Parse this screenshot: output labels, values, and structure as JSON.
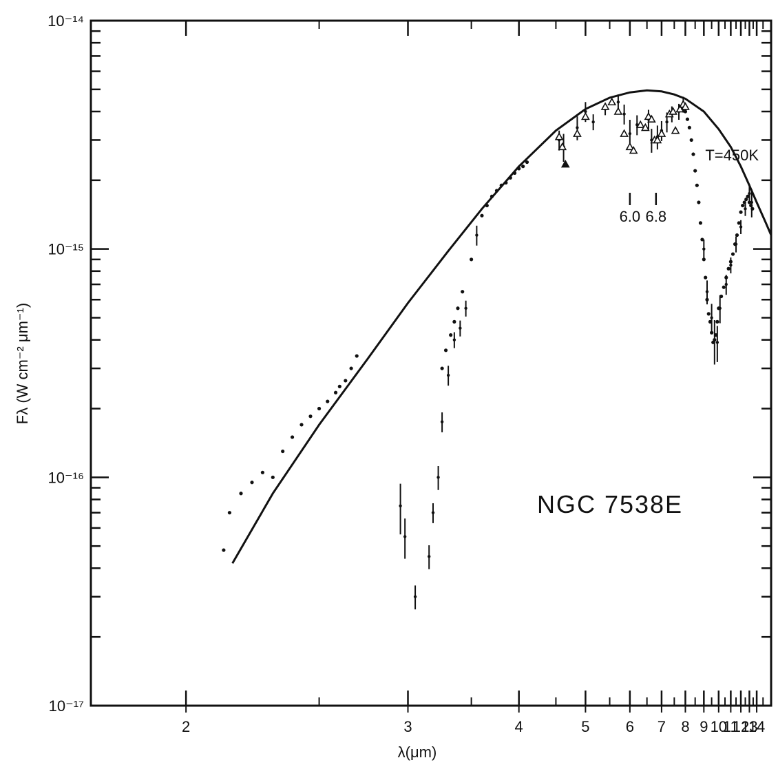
{
  "chart_data": {
    "type": "scatter",
    "title": "",
    "xlabel": "λ(μm)",
    "ylabel": "Fλ (W cm⁻² μm⁻¹)",
    "x_scale": "reciprocal",
    "y_scale": "log",
    "xlim": [
      1.75,
      16.5
    ],
    "ylim": [
      1e-17,
      1e-14
    ],
    "x_tick_labels": [
      "2",
      "3",
      "4",
      "5",
      "6",
      "7",
      "8",
      "9",
      "10",
      "11",
      "12",
      "13",
      "14"
    ],
    "x_tick_values": [
      2,
      3,
      4,
      5,
      6,
      7,
      8,
      9,
      10,
      11,
      12,
      13,
      14
    ],
    "y_tick_labels": [
      "10⁻¹⁴",
      "10⁻¹⁵",
      "10⁻¹⁶",
      "10⁻¹⁷"
    ],
    "y_tick_values": [
      1e-14,
      1e-15,
      1e-16,
      1e-17
    ],
    "object_label": "NGC 7538E",
    "curve_label": "T=450K",
    "feature_labels": [
      {
        "label": "6.0",
        "x": 6.0
      },
      {
        "label": "6.8",
        "x": 6.8
      }
    ],
    "grid": false,
    "legend": "none",
    "series": [
      {
        "kind": "curve",
        "x": [
          2.15,
          2.3,
          2.5,
          2.75,
          3.0,
          3.3,
          3.6,
          4.0,
          4.5,
          5.0,
          5.5,
          6.0,
          6.5,
          7.0,
          7.5,
          8.0,
          9.0,
          10.0,
          11.0,
          12.0,
          13.0,
          14.0,
          15.5,
          16.5
        ],
        "y": [
          4.2e-17,
          8.5e-17,
          1.7e-16,
          3.3e-16,
          5.8e-16,
          9.8e-16,
          1.5e-15,
          2.3e-15,
          3.3e-15,
          4.1e-15,
          4.6e-15,
          4.85e-15,
          4.95e-15,
          4.9e-15,
          4.75e-15,
          4.55e-15,
          4e-15,
          3.35e-15,
          2.8e-15,
          2.3e-15,
          1.9e-15,
          1.6e-15,
          1.3e-15,
          1.15e-15
        ]
      },
      {
        "kind": "dots",
        "x": [
          2.12,
          2.14,
          2.18,
          2.22,
          2.26,
          2.3,
          2.34,
          2.38,
          2.42,
          2.46,
          2.5,
          2.54,
          2.58,
          2.6,
          2.63,
          2.66,
          2.69,
          3.25,
          3.28,
          3.32,
          3.35,
          3.38,
          3.42,
          3.5,
          3.6,
          3.65,
          3.7,
          3.75,
          3.8,
          3.85,
          3.9,
          3.95,
          4.0,
          4.05,
          4.1,
          7.9,
          8.0,
          8.1,
          8.2,
          8.3,
          8.4,
          8.5,
          8.6,
          8.7,
          8.8,
          8.9,
          9.0,
          9.1,
          9.2,
          9.3,
          9.4,
          9.5,
          9.6,
          9.7,
          9.8,
          9.9,
          10.0,
          10.2,
          10.4,
          10.6,
          10.8,
          11.0,
          11.2,
          11.4,
          11.6,
          11.8,
          12.0,
          12.2,
          12.4,
          12.6,
          12.8,
          13.0,
          13.2,
          13.4
        ],
        "y": [
          4.8e-17,
          7e-17,
          8.5e-17,
          9.5e-17,
          1.05e-16,
          1e-16,
          1.3e-16,
          1.5e-16,
          1.7e-16,
          1.85e-16,
          2e-16,
          2.15e-16,
          2.35e-16,
          2.5e-16,
          2.65e-16,
          3e-16,
          3.4e-16,
          3e-16,
          3.6e-16,
          4.2e-16,
          4.8e-16,
          5.5e-16,
          6.5e-16,
          9e-16,
          1.4e-15,
          1.55e-15,
          1.7e-15,
          1.8e-15,
          1.9e-15,
          1.95e-15,
          2.05e-15,
          2.15e-15,
          2.25e-15,
          2.3e-15,
          2.4e-15,
          4.2e-15,
          4e-15,
          3.7e-15,
          3.4e-15,
          3e-15,
          2.6e-15,
          2.2e-15,
          1.9e-15,
          1.6e-15,
          1.3e-15,
          1.1e-15,
          9e-16,
          7.5e-16,
          6e-16,
          5.2e-16,
          4.8e-16,
          4.3e-16,
          3.9e-16,
          4e-16,
          4.2e-16,
          4.8e-16,
          5.5e-16,
          6.2e-16,
          6.8e-16,
          7.5e-16,
          8.2e-16,
          8.8e-16,
          9.5e-16,
          1.05e-15,
          1.15e-15,
          1.3e-15,
          1.45e-15,
          1.55e-15,
          1.6e-15,
          1.65e-15,
          1.7e-15,
          1.6e-15,
          1.55e-15,
          1.5e-15
        ]
      },
      {
        "kind": "errorbars",
        "x": [
          2.95,
          2.98,
          3.05,
          3.15,
          3.18,
          3.22,
          3.25,
          3.3,
          3.35,
          3.4,
          3.45,
          3.55,
          4.55,
          4.62,
          4.85,
          5.0,
          5.15,
          5.4,
          5.7,
          5.85,
          6.0,
          6.2,
          6.55,
          6.65,
          6.85,
          7.0,
          7.2,
          7.4,
          7.7,
          7.9,
          9.0,
          9.2,
          9.5,
          9.7,
          9.9,
          10.1,
          10.6,
          11.0,
          11.5,
          12.0,
          12.5,
          13.0,
          13.3
        ],
        "y": [
          7.5e-17,
          5.5e-17,
          3e-17,
          4.5e-17,
          7e-17,
          1e-16,
          1.75e-16,
          2.8e-16,
          4e-16,
          4.5e-16,
          5.5e-16,
          1.15e-15,
          3e-15,
          2.8e-15,
          3.4e-15,
          4e-15,
          3.6e-15,
          4.1e-15,
          4.4e-15,
          3.9e-15,
          3.2e-15,
          3.5e-15,
          3.7e-15,
          3e-15,
          3.1e-15,
          3.3e-15,
          3.6e-15,
          3.9e-15,
          4e-15,
          4.3e-15,
          1e-15,
          6.5e-16,
          5e-16,
          4e-16,
          3.9e-16,
          5.5e-16,
          7e-16,
          8.5e-16,
          1.05e-15,
          1.25e-15,
          1.5e-15,
          1.75e-15,
          1.6e-15
        ],
        "rel_err": [
          0.25,
          0.2,
          0.12,
          0.12,
          0.1,
          0.12,
          0.1,
          0.1,
          0.08,
          0.08,
          0.08,
          0.1,
          0.1,
          0.14,
          0.12,
          0.1,
          0.08,
          0.06,
          0.08,
          0.1,
          0.15,
          0.1,
          0.1,
          0.12,
          0.12,
          0.1,
          0.1,
          0.08,
          0.08,
          0.08,
          0.1,
          0.12,
          0.15,
          0.22,
          0.18,
          0.14,
          0.1,
          0.08,
          0.08,
          0.07,
          0.07,
          0.1,
          0.14
        ]
      },
      {
        "kind": "triangles",
        "x": [
          4.55,
          4.6,
          4.85,
          5.0,
          5.4,
          5.55,
          5.7,
          5.85,
          6.0,
          6.1,
          6.3,
          6.45,
          6.55,
          6.65,
          6.75,
          6.85,
          7.0,
          7.3,
          7.45,
          7.55,
          7.75,
          7.9,
          8.0
        ],
        "y": [
          3.1e-15,
          2.8e-15,
          3.2e-15,
          3.8e-15,
          4.2e-15,
          4.4e-15,
          4e-15,
          3.2e-15,
          2.8e-15,
          2.7e-15,
          3.5e-15,
          3.4e-15,
          3.8e-15,
          3.7e-15,
          3e-15,
          3e-15,
          3.2e-15,
          3.9e-15,
          4e-15,
          3.3e-15,
          4.1e-15,
          4.3e-15,
          4.2e-15
        ]
      },
      {
        "kind": "filled-triangle",
        "x": [
          4.65
        ],
        "y": [
          2.35e-15
        ]
      }
    ]
  }
}
